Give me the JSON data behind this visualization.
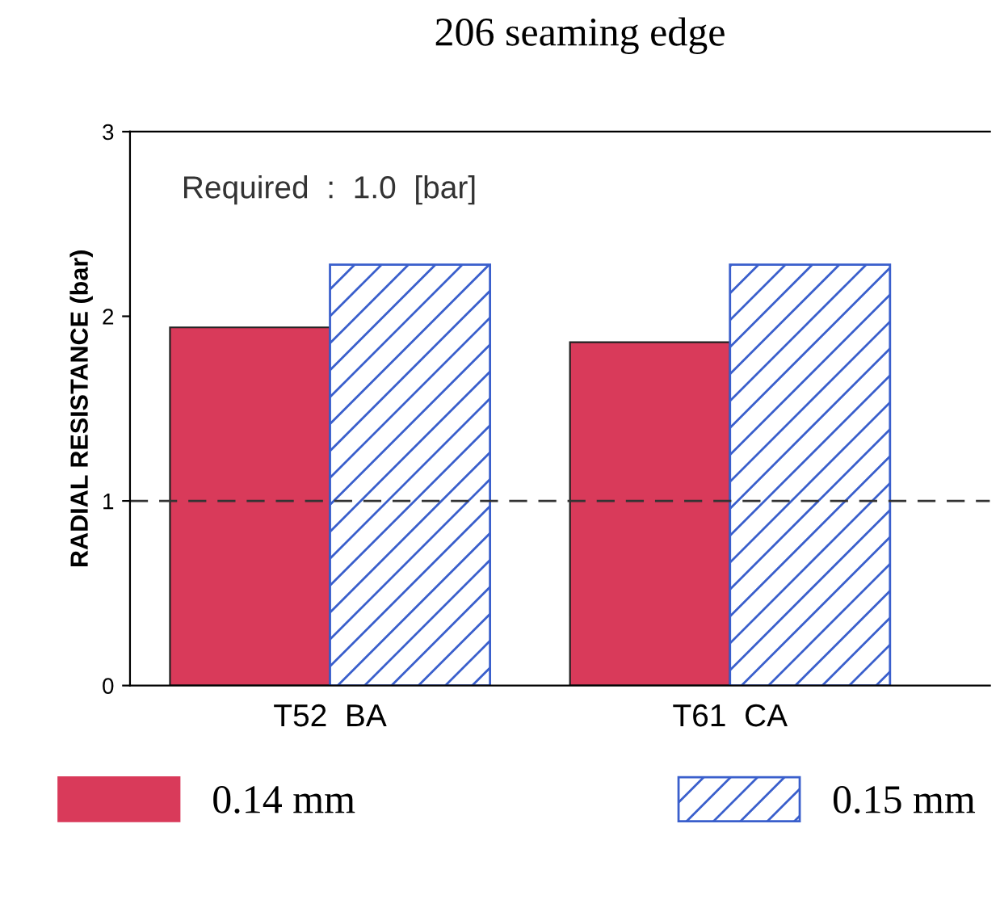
{
  "chart_data": {
    "type": "bar",
    "title": "206 seaming edge",
    "ylabel": "RADIAL RESISTANCE (bar)",
    "categories": [
      "T52  BA",
      "T61  CA"
    ],
    "series": [
      {
        "name": "0.14 mm",
        "color": "#d93a5a",
        "values": [
          1.94,
          1.86
        ]
      },
      {
        "name": "0.15 mm",
        "color": "#3a5fcc",
        "values": [
          2.28,
          2.28
        ]
      }
    ],
    "ylim": [
      0,
      3
    ],
    "yticks": [
      0,
      1,
      2,
      3
    ],
    "grid": false,
    "legend": "bottom",
    "annotations": [
      "Required  :  1.0  [bar]"
    ],
    "ref_lines": [
      {
        "axis": "y",
        "value": 1.0,
        "line_style": "dashed",
        "color": "#333333"
      }
    ]
  }
}
